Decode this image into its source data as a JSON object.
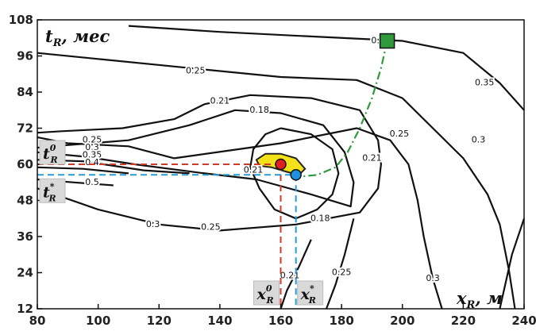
{
  "chart_data": {
    "type": "contour",
    "xlabel": "x_R, м",
    "ylabel": "t_R, мес",
    "xlabel_main": "x",
    "xlabel_sub": "R",
    "xlabel_unit": ", м",
    "ylabel_main": "t",
    "ylabel_sub": "R",
    "ylabel_unit": ", мес",
    "xlim": [
      80,
      240
    ],
    "ylim": [
      12,
      108
    ],
    "x_ticks": [
      80,
      100,
      120,
      140,
      160,
      180,
      200,
      220,
      240
    ],
    "y_ticks": [
      12,
      24,
      36,
      48,
      60,
      72,
      84,
      96,
      108
    ],
    "grid": false,
    "contour_levels": [
      0.18,
      0.21,
      0.25,
      0.3,
      0.35,
      0.4,
      0.5
    ],
    "contour_labels": [
      {
        "text": "0.3",
        "x": 192,
        "y": 101
      },
      {
        "text": "0.25",
        "x": 132,
        "y": 91
      },
      {
        "text": "0.35",
        "x": 227,
        "y": 87
      },
      {
        "text": "0.21",
        "x": 140,
        "y": 81
      },
      {
        "text": "0.18",
        "x": 153,
        "y": 78
      },
      {
        "text": "0.25",
        "x": 98,
        "y": 68
      },
      {
        "text": "0.3",
        "x": 98,
        "y": 65.5
      },
      {
        "text": "0.35",
        "x": 98,
        "y": 63
      },
      {
        "text": "0.4",
        "x": 98,
        "y": 60.5
      },
      {
        "text": "0.5",
        "x": 98,
        "y": 54
      },
      {
        "text": "0.21",
        "x": 151,
        "y": 58
      },
      {
        "text": "0.21",
        "x": 190,
        "y": 62
      },
      {
        "text": "0.25",
        "x": 199,
        "y": 70
      },
      {
        "text": "0.3",
        "x": 225,
        "y": 68
      },
      {
        "text": "0.18",
        "x": 173,
        "y": 42
      },
      {
        "text": "0.3",
        "x": 118,
        "y": 40
      },
      {
        "text": "0.25",
        "x": 137,
        "y": 39
      },
      {
        "text": "0.21",
        "x": 163,
        "y": 23
      },
      {
        "text": "0.25",
        "x": 180,
        "y": 24
      },
      {
        "text": "0.3",
        "x": 210,
        "y": 22
      }
    ],
    "points": [
      {
        "name": "optimum-0",
        "x": 160,
        "y": 60,
        "color": "#e02020"
      },
      {
        "name": "optimum-star",
        "x": 165,
        "y": 56.5,
        "color": "#1e90e0"
      },
      {
        "name": "start",
        "x": 195,
        "y": 101,
        "color": "#2e9a3c",
        "marker": "square"
      }
    ],
    "reference_lines": [
      {
        "axis": "x",
        "value": 160,
        "color": "#d03a2a",
        "label_main": "x",
        "label_sub": "R",
        "label_sup": "0"
      },
      {
        "axis": "x",
        "value": 165,
        "color": "#2a9ad0",
        "label_main": "x",
        "label_sub": "R",
        "label_sup": "*"
      },
      {
        "axis": "y",
        "value": 60,
        "color": "#d03a2a",
        "label_main": "t",
        "label_sub": "R",
        "label_sup": "0"
      },
      {
        "axis": "y",
        "value": 56.5,
        "color": "#2a9ad0",
        "label_main": "t",
        "label_sub": "R",
        "label_sup": "*"
      }
    ],
    "path": {
      "color": "#2e9a3c",
      "points": [
        [
          195,
          101
        ],
        [
          193,
          92
        ],
        [
          190,
          82
        ],
        [
          186,
          72
        ],
        [
          182,
          64
        ],
        [
          178,
          59
        ],
        [
          172,
          56.5
        ],
        [
          167,
          56
        ]
      ]
    },
    "colors": {
      "contour": "#111111",
      "region_fill": "#f3e21a",
      "region_stroke": "#222222",
      "label_box": "#d9d9d9",
      "tick_marks": "#2233aa"
    }
  }
}
